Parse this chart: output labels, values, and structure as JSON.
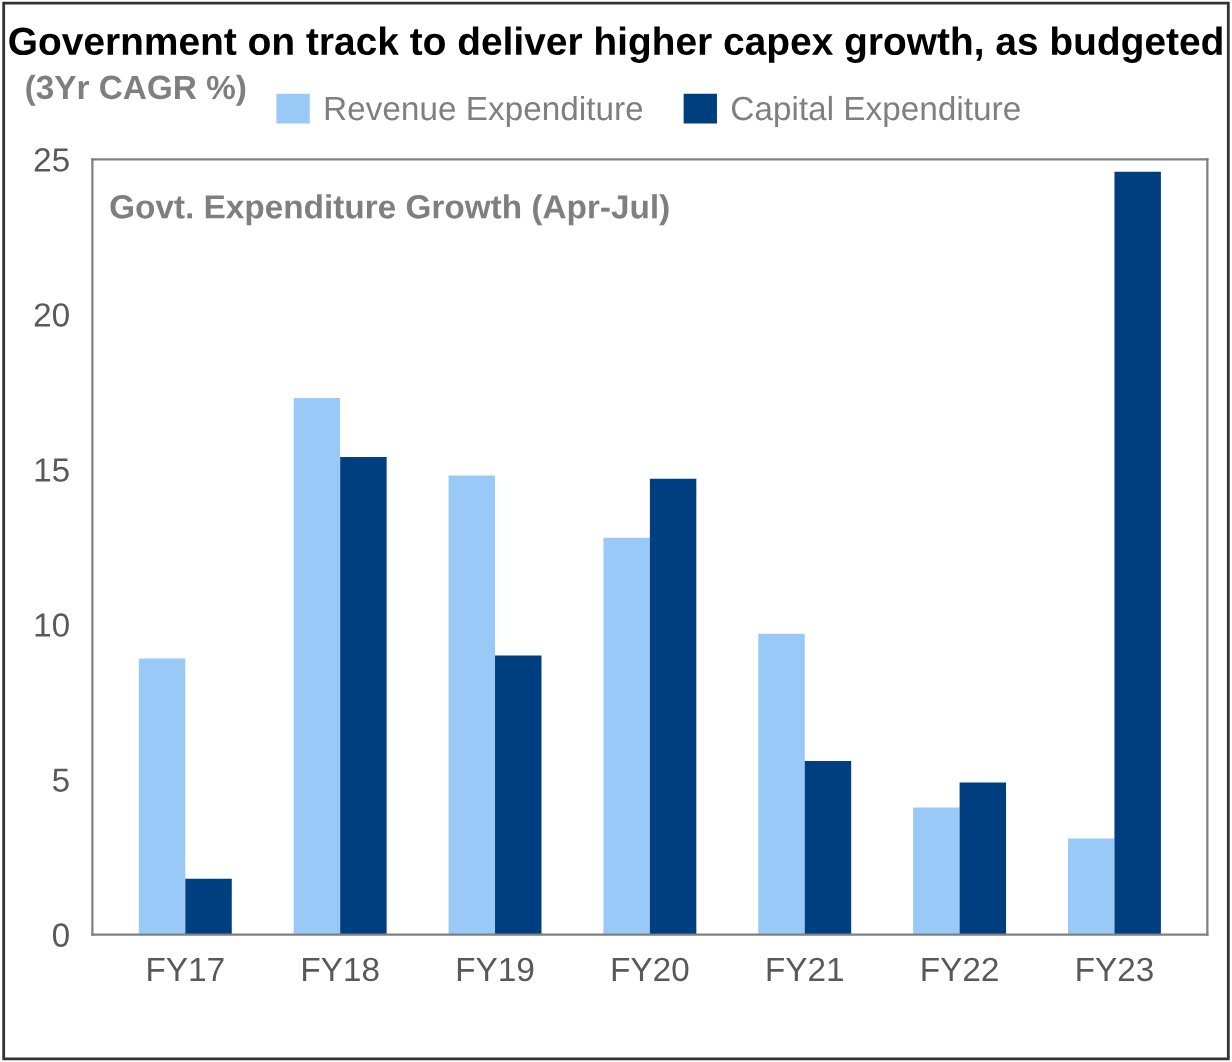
{
  "chart_data": {
    "type": "bar",
    "title": "Government on track to deliver higher capex growth, as budgeted",
    "ylabel": "(3Yr CAGR %)",
    "annotations": [
      "Govt. Expenditure Growth (Apr-Jul)"
    ],
    "categories": [
      "FY17",
      "FY18",
      "FY19",
      "FY20",
      "FY21",
      "FY22",
      "FY23"
    ],
    "series": [
      {
        "name": "Revenue Expenditure",
        "color": "#99c9f7",
        "values": [
          8.9,
          17.3,
          14.8,
          12.8,
          9.7,
          4.1,
          3.1
        ]
      },
      {
        "name": "Capital Expenditure",
        "color": "#003f7f",
        "values": [
          1.8,
          15.4,
          9.0,
          14.7,
          5.6,
          4.9,
          24.6
        ]
      }
    ],
    "ylim": [
      0,
      25
    ],
    "yticks": [
      0,
      5,
      10,
      15,
      20,
      25
    ],
    "grid": false,
    "legend": "top"
  }
}
